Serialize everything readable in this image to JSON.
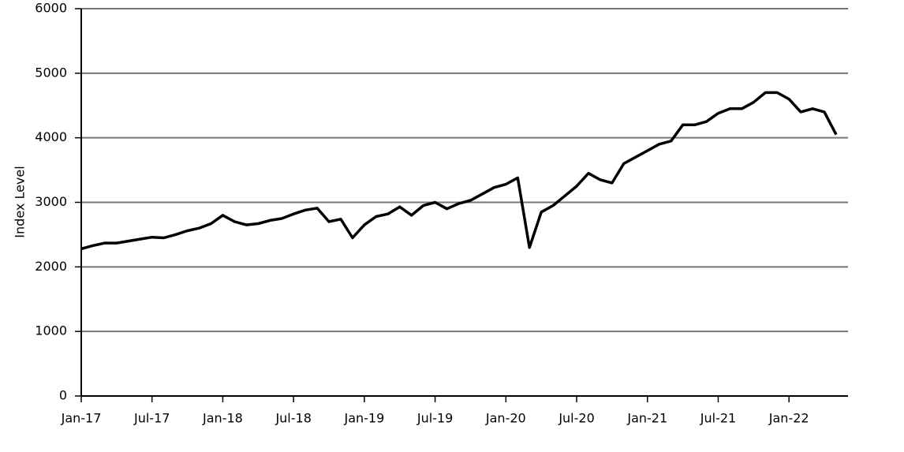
{
  "chart_data": {
    "type": "line",
    "y_label": "Index Level",
    "x": [
      "2017-01",
      "2017-02",
      "2017-03",
      "2017-04",
      "2017-05",
      "2017-06",
      "2017-07",
      "2017-08",
      "2017-09",
      "2017-10",
      "2017-11",
      "2017-12",
      "2018-01",
      "2018-02",
      "2018-03",
      "2018-04",
      "2018-05",
      "2018-06",
      "2018-07",
      "2018-08",
      "2018-09",
      "2018-10",
      "2018-11",
      "2018-12",
      "2019-01",
      "2019-02",
      "2019-03",
      "2019-04",
      "2019-05",
      "2019-06",
      "2019-07",
      "2019-08",
      "2019-09",
      "2019-10",
      "2019-11",
      "2019-12",
      "2020-01",
      "2020-02",
      "2020-03",
      "2020-04",
      "2020-05",
      "2020-06",
      "2020-07",
      "2020-08",
      "2020-09",
      "2020-10",
      "2020-11",
      "2020-12",
      "2021-01",
      "2021-02",
      "2021-03",
      "2021-04",
      "2021-05",
      "2021-06",
      "2021-07",
      "2021-08",
      "2021-09",
      "2021-10",
      "2021-11",
      "2021-12",
      "2022-01",
      "2022-02",
      "2022-03",
      "2022-04",
      "2022-05"
    ],
    "series": [
      {
        "color": "#000000",
        "values": [
          2280,
          2330,
          2370,
          2370,
          2400,
          2430,
          2460,
          2450,
          2500,
          2560,
          2600,
          2670,
          2800,
          2700,
          2650,
          2670,
          2720,
          2750,
          2820,
          2880,
          2910,
          2700,
          2740,
          2450,
          2650,
          2780,
          2820,
          2930,
          2800,
          2950,
          3000,
          2900,
          2980,
          3030,
          3130,
          3230,
          3280,
          3380,
          2300,
          2850,
          2950,
          3100,
          3250,
          3450,
          3350,
          3300,
          3600,
          3700,
          3800,
          3900,
          3950,
          4200,
          4200,
          4250,
          4380,
          4450,
          4450,
          4550,
          4700,
          4700,
          4600,
          4400,
          4450,
          4400,
          4050
        ]
      }
    ],
    "xlim": [
      "2017-01",
      "2022-05"
    ],
    "xticks": [
      {
        "value": "2017-01",
        "label": "Jan-17"
      },
      {
        "value": "2017-07",
        "label": "Jul-17"
      },
      {
        "value": "2018-01",
        "label": "Jan-18"
      },
      {
        "value": "2018-07",
        "label": "Jul-18"
      },
      {
        "value": "2019-01",
        "label": "Jan-19"
      },
      {
        "value": "2019-07",
        "label": "Jul-19"
      },
      {
        "value": "2020-01",
        "label": "Jan-20"
      },
      {
        "value": "2020-07",
        "label": "Jul-20"
      },
      {
        "value": "2021-01",
        "label": "Jan-21"
      },
      {
        "value": "2021-07",
        "label": "Jul-21"
      },
      {
        "value": "2022-01",
        "label": "Jan-22"
      }
    ],
    "ylim": [
      0,
      6000
    ],
    "yticks": [
      0,
      1000,
      2000,
      3000,
      4000,
      5000,
      6000
    ],
    "grid": true
  }
}
